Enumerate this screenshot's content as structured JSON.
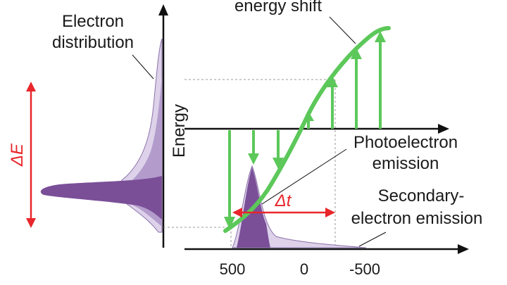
{
  "labels": {
    "electron_distribution_line1": "Electron",
    "electron_distribution_line2": "distribution",
    "energy_shift": "energy shift",
    "energy_axis": "Energy",
    "photoelectron_line1": "Photoelectron",
    "photoelectron_line2": "emission",
    "secondary_line1": "Secondary-",
    "secondary_line2": "electron emission",
    "delta_e": "ΔE",
    "delta_t": "Δt"
  },
  "time_axis": {
    "ticks": [
      "500",
      "0",
      "-500"
    ]
  },
  "colors": {
    "green": "#5cc85a",
    "red": "#e8262b",
    "purple_dark": "#7a4f98",
    "purple_mid": "#b39ccc",
    "purple_light": "#ddd2ea",
    "axis": "#111111"
  }
}
